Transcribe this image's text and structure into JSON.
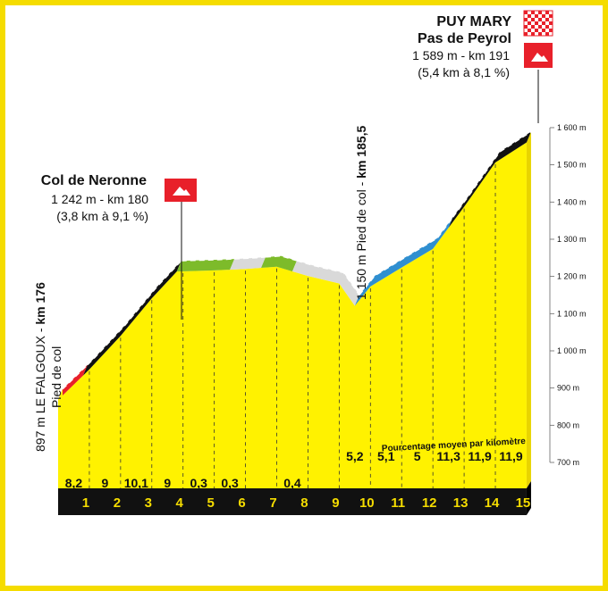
{
  "chart_data": {
    "type": "area",
    "title": "",
    "xlabel": "",
    "ylabel": "",
    "y_unit": "m",
    "ylim": [
      700,
      1600
    ],
    "y_ticks": [
      {
        "value": 700,
        "label": "700 m"
      },
      {
        "value": 800,
        "label": "800 m"
      },
      {
        "value": 900,
        "label": "900 m"
      },
      {
        "value": 1000,
        "label": "1 000 m"
      },
      {
        "value": 1100,
        "label": "1 100 m"
      },
      {
        "value": 1200,
        "label": "1 200 m"
      },
      {
        "value": 1300,
        "label": "1 300 m"
      },
      {
        "value": 1400,
        "label": "1 400 m"
      },
      {
        "value": 1500,
        "label": "1 500 m"
      },
      {
        "value": 1600,
        "label": "1 600 m"
      }
    ],
    "km_labels": [
      "1",
      "2",
      "3",
      "4",
      "5",
      "6",
      "7",
      "8",
      "9",
      "10",
      "11",
      "12",
      "13",
      "14",
      "15"
    ],
    "grades": [
      "8,2",
      "9",
      "10,1",
      "9",
      "0,3",
      "0,3",
      "",
      "0,4",
      "",
      "5,2",
      "5,1",
      "5",
      "11,3",
      "11,9",
      "11,9"
    ],
    "grades_caption": "Pourcentage moyen par kilomètre",
    "profile": [
      {
        "km": 0,
        "alt": 897
      },
      {
        "km": 1,
        "alt": 979
      },
      {
        "km": 2,
        "alt": 1069
      },
      {
        "km": 3,
        "alt": 1170
      },
      {
        "km": 3.8,
        "alt": 1242
      },
      {
        "km": 5,
        "alt": 1245
      },
      {
        "km": 6,
        "alt": 1249
      },
      {
        "km": 7,
        "alt": 1255
      },
      {
        "km": 8,
        "alt": 1230
      },
      {
        "km": 9,
        "alt": 1210
      },
      {
        "km": 9.5,
        "alt": 1150
      },
      {
        "km": 10,
        "alt": 1202
      },
      {
        "km": 11,
        "alt": 1253
      },
      {
        "km": 12,
        "alt": 1303
      },
      {
        "km": 13,
        "alt": 1416
      },
      {
        "km": 14,
        "alt": 1535
      },
      {
        "km": 15,
        "alt": 1589
      }
    ],
    "segments": [
      {
        "from": 0,
        "to": 0.8,
        "color": "#e8202a"
      },
      {
        "from": 0.8,
        "to": 3.8,
        "color": "#111111"
      },
      {
        "from": 3.8,
        "to": 5.5,
        "color": "#7dbb2a"
      },
      {
        "from": 5.5,
        "to": 6.5,
        "color": "#d9d9d9"
      },
      {
        "from": 6.5,
        "to": 7.5,
        "color": "#7dbb2a"
      },
      {
        "from": 7.5,
        "to": 9.5,
        "color": "#d9d9d9"
      },
      {
        "from": 9.5,
        "to": 12.5,
        "color": "#2f8fd0"
      },
      {
        "from": 12.5,
        "to": 15,
        "color": "#111111"
      }
    ],
    "annotations": {
      "start": {
        "alt_text": "897 m LE FALGOUX - ",
        "km_text": "km 176",
        "sub": "Pied de col"
      },
      "neronne": {
        "name": "Col de Neronne",
        "line1": "1 242 m - km 180",
        "line2": "(3,8 km à 9,1 %)"
      },
      "peyrol_foot": {
        "alt_text": "1 150 m Pied de col - ",
        "km_text": "km 185,5"
      },
      "summit": {
        "name1": "PUY MARY",
        "name2": "Pas de Peyrol",
        "line1": "1 589 m -  km 191",
        "line2": "(5,4 km à 8,1 %)"
      }
    },
    "colors": {
      "fill": "#fff200",
      "base": "#111111",
      "side": "#e8d400",
      "flag_red": "#e8202a",
      "checker": "#e8202a"
    },
    "icons": [
      "mountain-flag-icon",
      "finish-checkered-flag-icon"
    ]
  }
}
